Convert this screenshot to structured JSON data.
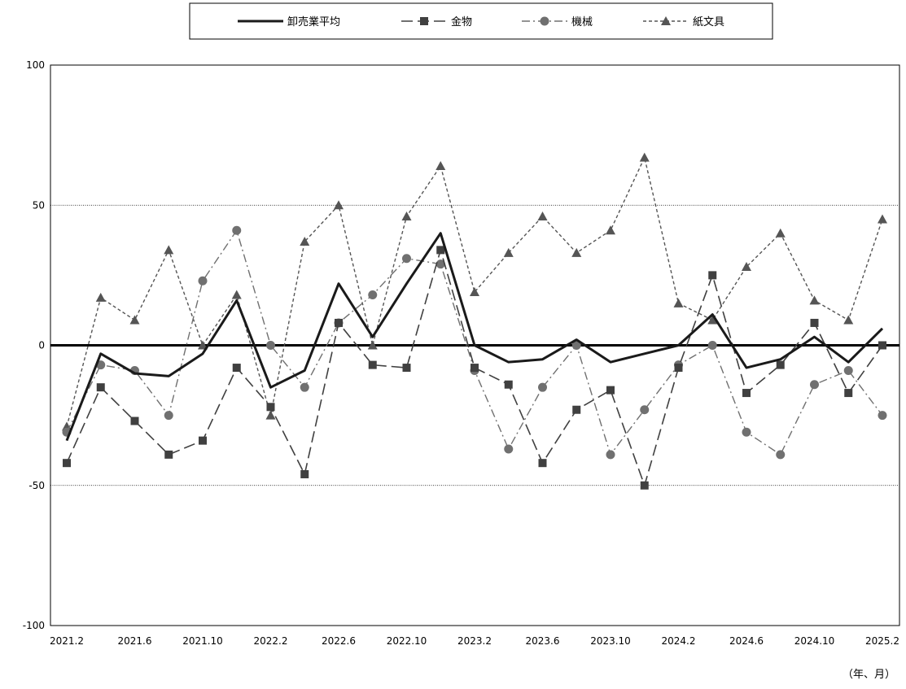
{
  "chart_data": {
    "type": "line",
    "title": "",
    "xlabel": "",
    "ylabel": "",
    "unit_label": "（年、月）",
    "ylim": [
      -100,
      100
    ],
    "yticks": [
      100,
      50,
      0,
      -50,
      -100
    ],
    "ytick_labels": [
      "100",
      "50",
      "0",
      "-50",
      "-100"
    ],
    "grid": "dotted horizontal at ±50",
    "legend_position": "top-center",
    "x": [
      "2021.2",
      "2021.4",
      "2021.6",
      "2021.8",
      "2021.10",
      "2021.12",
      "2022.2",
      "2022.4",
      "2022.6",
      "2022.8",
      "2022.10",
      "2022.12",
      "2023.2",
      "2023.4",
      "2023.6",
      "2023.8",
      "2023.10",
      "2023.12",
      "2024.2",
      "2024.4",
      "2024.6",
      "2024.8",
      "2024.10",
      "2024.12",
      "2025.2"
    ],
    "xtick_labels": [
      "2021.2",
      "2021.6",
      "2021.10",
      "2022.2",
      "2022.6",
      "2022.10",
      "2023.2",
      "2023.6",
      "2023.10",
      "2024.2",
      "2024.6",
      "2024.10",
      "2025.2"
    ],
    "series": [
      {
        "name": "卸売業平均",
        "style": "solid-thick",
        "marker": "none",
        "color": "#1a1a1a",
        "values": [
          -34,
          -3,
          -10,
          -11,
          -3,
          16,
          -15,
          -9,
          22,
          3,
          22,
          40,
          0,
          -6,
          -5,
          2,
          -6,
          -3,
          0,
          11,
          -8,
          -5,
          3,
          -6,
          6
        ]
      },
      {
        "name": "金物",
        "style": "long-dash",
        "marker": "square",
        "color": "#404040",
        "values": [
          -42,
          -15,
          -27,
          -39,
          -34,
          -8,
          -22,
          -46,
          8,
          -7,
          -8,
          34,
          -8,
          -14,
          -42,
          -23,
          -16,
          -50,
          -8,
          25,
          -17,
          -7,
          8,
          -17,
          0
        ]
      },
      {
        "name": "機械",
        "style": "dash-dot",
        "marker": "circle",
        "color": "#707070",
        "values": [
          -31,
          -7,
          -9,
          -25,
          23,
          41,
          0,
          -15,
          8,
          18,
          31,
          29,
          -9,
          -37,
          -15,
          0,
          -39,
          -23,
          -7,
          0,
          -31,
          -39,
          -14,
          -9,
          -25
        ]
      },
      {
        "name": "紙文具",
        "style": "short-dash",
        "marker": "triangle",
        "color": "#555555",
        "values": [
          -29,
          17,
          9,
          34,
          0,
          18,
          -25,
          37,
          50,
          0,
          46,
          64,
          19,
          33,
          46,
          33,
          41,
          67,
          15,
          9,
          28,
          40,
          16,
          9,
          45
        ]
      }
    ]
  }
}
